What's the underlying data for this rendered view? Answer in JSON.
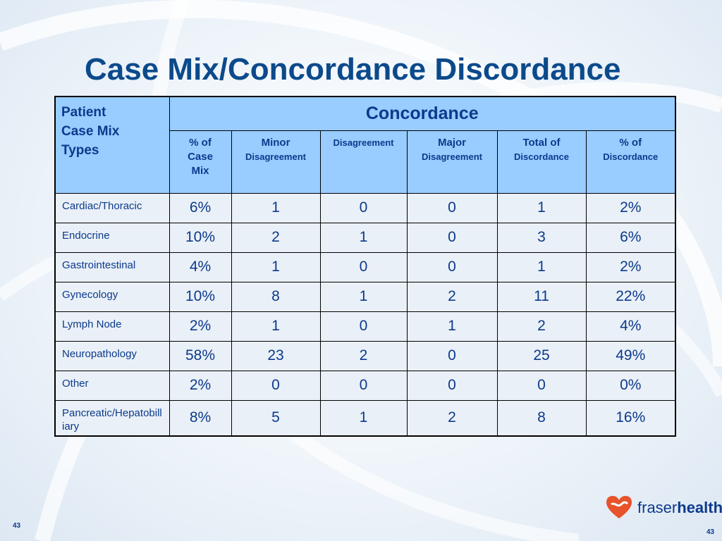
{
  "slide": {
    "title": "Case Mix/Concordance Discordance",
    "page_number_left": "43",
    "page_number_right": "43"
  },
  "logo": {
    "text_part1": "fraser",
    "text_part2": "health"
  },
  "table": {
    "corner_header_lines": [
      "Patient",
      "Case Mix",
      "Types"
    ],
    "group_header": "Concordance",
    "columns": [
      {
        "line1": "% of",
        "line2": "Case",
        "line3": "Mix"
      },
      {
        "line1": "Minor",
        "line2": "Disagreement"
      },
      {
        "line1": "Disagreement"
      },
      {
        "line1": "Major",
        "line2": "Disagreement"
      },
      {
        "line1": "Total of",
        "line2": "Discordance"
      },
      {
        "line1": "% of",
        "line2": "Discordance"
      }
    ],
    "rows": [
      {
        "type": "Cardiac/Thoracic",
        "values": [
          "6%",
          "1",
          "0",
          "0",
          "1",
          "2%"
        ]
      },
      {
        "type": "Endocrine",
        "values": [
          "10%",
          "2",
          "1",
          "0",
          "3",
          "6%"
        ]
      },
      {
        "type": "Gastrointestinal",
        "values": [
          "4%",
          "1",
          "0",
          "0",
          "1",
          "2%"
        ]
      },
      {
        "type": "Gynecology",
        "values": [
          "10%",
          "8",
          "1",
          "2",
          "11",
          "22%"
        ]
      },
      {
        "type": "Lymph Node",
        "values": [
          "2%",
          "1",
          "0",
          "1",
          "2",
          "4%"
        ]
      },
      {
        "type": "Neuropathology",
        "values": [
          "58%",
          "23",
          "2",
          "0",
          "25",
          "49%"
        ]
      },
      {
        "type": "Other",
        "values": [
          "2%",
          "0",
          "0",
          "0",
          "0",
          "0%"
        ]
      },
      {
        "type": "Pancreatic/Hepatobilliary",
        "values": [
          "8%",
          "5",
          "1",
          "2",
          "8",
          "16%"
        ]
      }
    ]
  },
  "colors": {
    "title": "#0b4a8b",
    "header_fill": "#99ccff",
    "body_fill": "#eaf0f7",
    "logo_heart": "#e8532b"
  }
}
